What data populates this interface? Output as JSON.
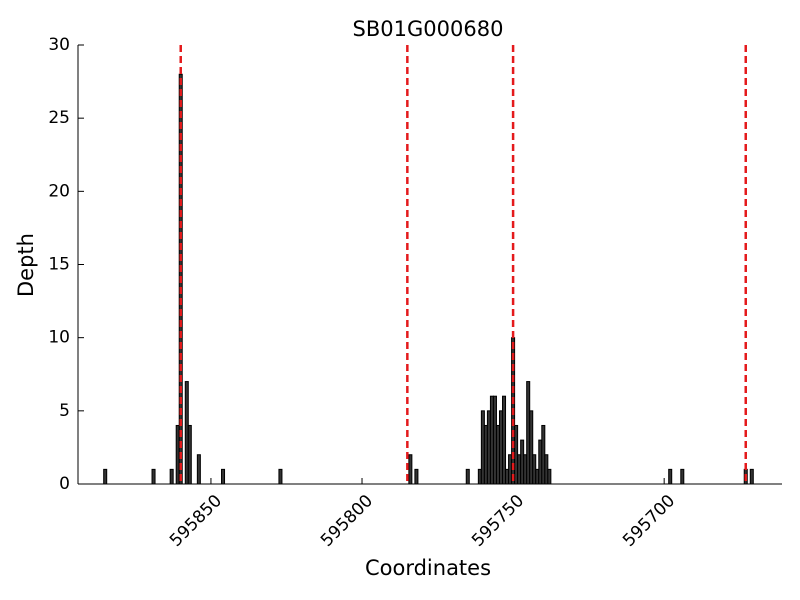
{
  "chart_data": {
    "type": "bar",
    "title": "SB01G000680",
    "x_label": "Coordinates",
    "y_label": "Depth",
    "x": [
      595885,
      595869,
      595863,
      595861,
      595860,
      595858,
      595857,
      595854,
      595846,
      595827,
      595784,
      595782,
      595765,
      595761,
      595760,
      595759,
      595758,
      595757,
      595756,
      595755,
      595754,
      595753,
      595752,
      595751,
      595750,
      595749,
      595748,
      595747,
      595746,
      595745,
      595744,
      595743,
      595742,
      595741,
      595740,
      595739,
      595738,
      595698,
      595694,
      595673,
      595671
    ],
    "values": [
      1,
      1,
      1,
      4,
      28,
      7,
      4,
      2,
      1,
      1,
      2,
      1,
      1,
      1,
      5,
      4,
      5,
      6,
      6,
      4,
      5,
      6,
      1,
      2,
      10,
      4,
      2,
      3,
      2,
      7,
      5,
      2,
      1,
      3,
      4,
      2,
      1,
      1,
      1,
      1,
      1
    ],
    "color": "#333333",
    "edge_color": "#000000",
    "xlim": [
      595894,
      595661
    ],
    "xticks": [
      595850,
      595800,
      595750,
      595700
    ],
    "ylim": [
      0,
      30
    ],
    "yticks": [
      0,
      5,
      10,
      15,
      20,
      25,
      30
    ],
    "vlines": [
      595860,
      595785,
      595750,
      595673
    ],
    "vline_color": "#e41a1c"
  }
}
